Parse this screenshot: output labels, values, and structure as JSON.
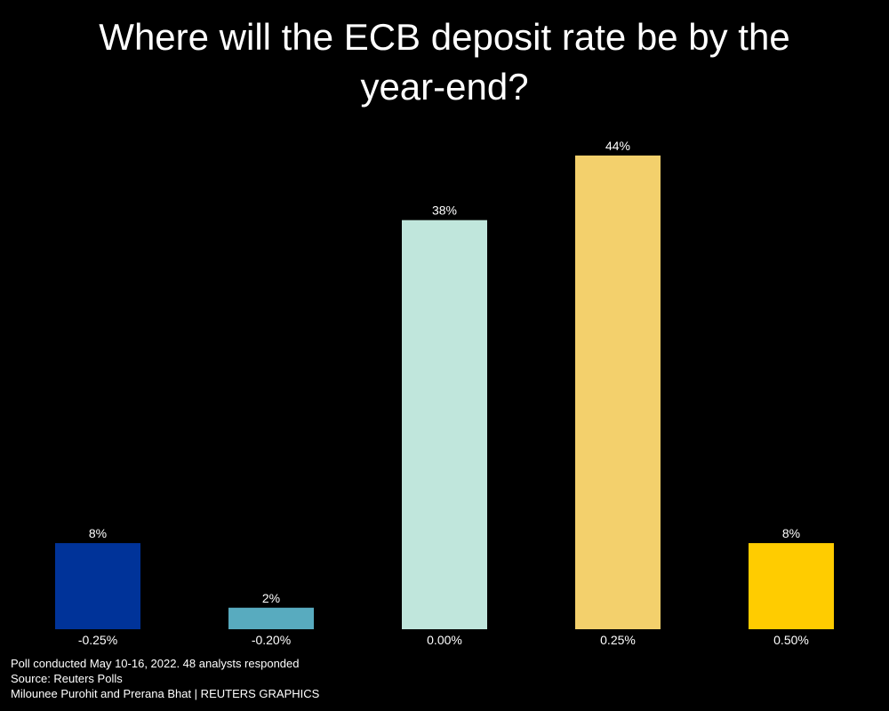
{
  "chart_data": {
    "type": "bar",
    "title": "Where will the ECB deposit rate be by the year-end?",
    "categories": [
      "-0.25%",
      "-0.20%",
      "0.00%",
      "0.25%",
      "0.50%"
    ],
    "values": [
      8,
      2,
      38,
      44,
      8
    ],
    "value_labels": [
      "8%",
      "2%",
      "38%",
      "44%",
      "8%"
    ],
    "colors": [
      "#003399",
      "#58abbf",
      "#c0e6dc",
      "#f3d06c",
      "#ffcc00"
    ],
    "ylim": [
      0,
      44
    ],
    "xlabel": "",
    "ylabel": "",
    "grid": false,
    "legend": "none"
  },
  "footer": {
    "note": "Poll conducted May 10-16, 2022. 48 analysts responded",
    "source": "Source: Reuters Polls",
    "credit": "Milounee Purohit and Prerana Bhat | REUTERS GRAPHICS"
  }
}
